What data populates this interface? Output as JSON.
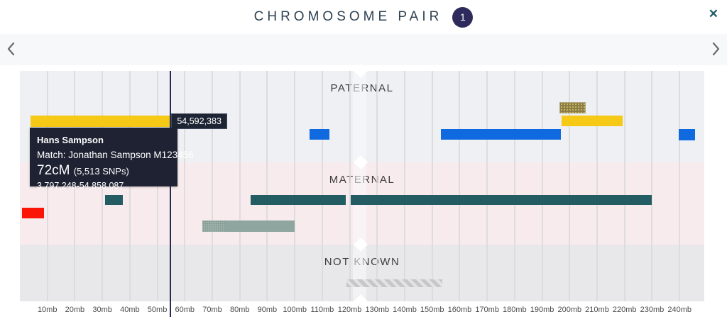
{
  "header": {
    "title": "CHROMOSOME PAIR",
    "chromosome_number": "1"
  },
  "icons": {
    "close": "✕",
    "prev": "chevron-left",
    "next": "chevron-right"
  },
  "tracks": [
    {
      "id": "paternal",
      "label": "PATERNAL"
    },
    {
      "id": "maternal",
      "label": "MATERNAL"
    },
    {
      "id": "notknown",
      "label": "NOT KNOWN"
    }
  ],
  "tooltip": {
    "name": "Hans Sampson",
    "match": "Match: Jonathan Sampson M123456",
    "cm": "72cM",
    "snps": "(5,513 SNPs)",
    "range": "3,797,248-54,858,087"
  },
  "cursor": {
    "position_label": "54,592,383",
    "position_mb": 54.59
  },
  "colors": {
    "yellow": "#f5c916",
    "blue": "#0f6ae0",
    "red": "#fb1507",
    "teal": "#235c63",
    "sage": "#8ea69f",
    "olive": "#8b7d4a",
    "badge": "#2e2a5c",
    "cursor": "#262a4f",
    "tooltip_bg": "#1e2232",
    "paternal_bg": "#eef0f3",
    "maternal_bg": "#f8ebed",
    "notknown_bg": "#e8e8ea"
  },
  "chart_data": {
    "type": "genome-segment-track",
    "x_unit": "mb",
    "x_range": [
      0,
      249
    ],
    "centromere_mb": 124,
    "axis_ticks_mb": [
      10,
      20,
      30,
      40,
      50,
      60,
      70,
      80,
      90,
      100,
      110,
      120,
      130,
      140,
      150,
      160,
      170,
      180,
      190,
      200,
      210,
      220,
      230,
      240
    ],
    "tick_suffix": "mb",
    "segments": [
      {
        "track": "paternal",
        "start_mb": 3.8,
        "end_mb": 54.9,
        "style": "yellow",
        "top": 63,
        "h": 16,
        "label": "Hans Sampson segment"
      },
      {
        "track": "paternal",
        "start_mb": 105.5,
        "end_mb": 112.5,
        "style": "blue",
        "top": 82,
        "h": 15
      },
      {
        "track": "paternal",
        "start_mb": 153.3,
        "end_mb": 196.8,
        "style": "blue",
        "top": 82,
        "h": 15
      },
      {
        "track": "paternal",
        "start_mb": 196.2,
        "end_mb": 205.8,
        "style": "olive",
        "top": 44,
        "h": 16
      },
      {
        "track": "paternal",
        "start_mb": 197.0,
        "end_mb": 219.3,
        "style": "yellow",
        "top": 63,
        "h": 15
      },
      {
        "track": "paternal",
        "start_mb": 239.7,
        "end_mb": 245.6,
        "style": "blue",
        "top": 82,
        "h": 16
      },
      {
        "track": "maternal",
        "start_mb": 0.8,
        "end_mb": 8.8,
        "style": "red",
        "top": 64,
        "h": 15
      },
      {
        "track": "maternal",
        "start_mb": 31.0,
        "end_mb": 37.4,
        "style": "teal",
        "top": 46,
        "h": 14
      },
      {
        "track": "maternal",
        "start_mb": 83.9,
        "end_mb": 118.5,
        "style": "teal",
        "top": 46,
        "h": 14
      },
      {
        "track": "maternal",
        "start_mb": 120.4,
        "end_mb": 229.8,
        "style": "teal",
        "top": 46,
        "h": 14
      },
      {
        "track": "maternal",
        "start_mb": 66.4,
        "end_mb": 100.0,
        "style": "sage",
        "top": 82,
        "h": 16,
        "cap_mb": 8.3
      },
      {
        "track": "notknown",
        "start_mb": 118.8,
        "end_mb": 153.7,
        "style": "hatched",
        "top": 49,
        "h": 11
      }
    ]
  }
}
